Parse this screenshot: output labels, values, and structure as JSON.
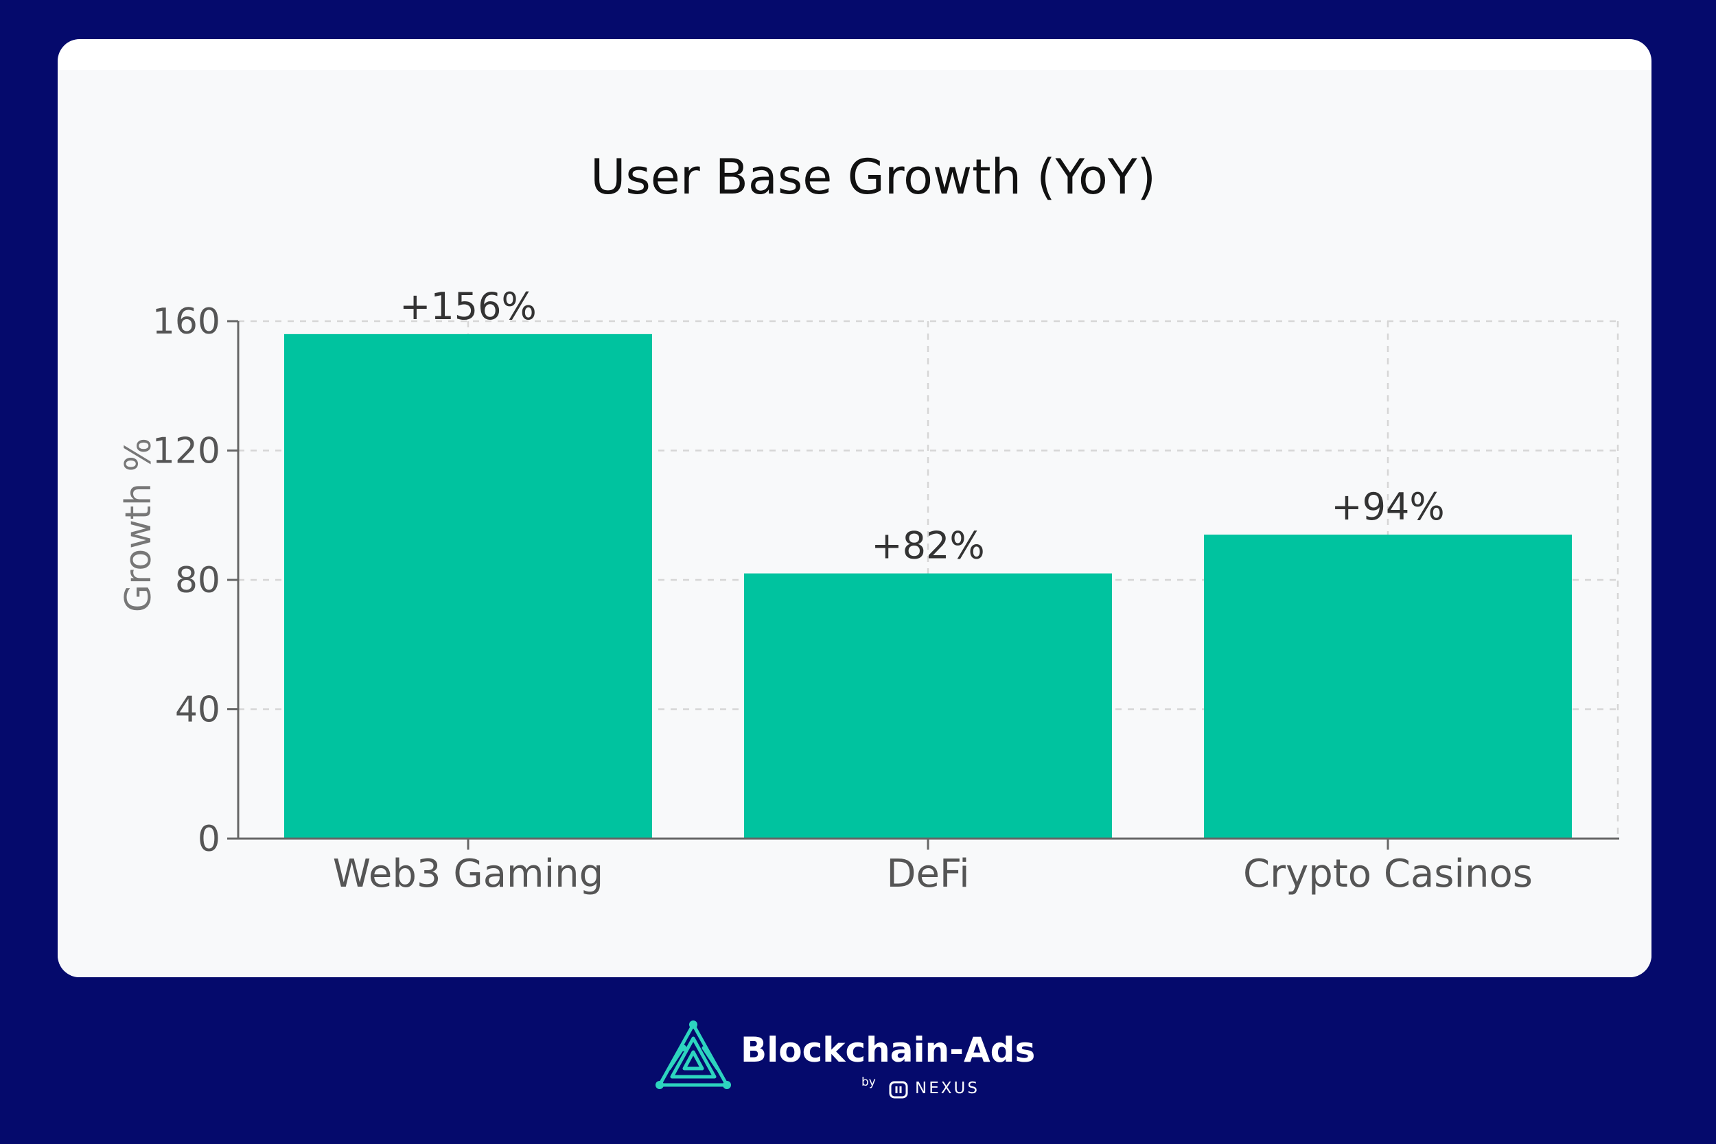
{
  "colors": {
    "background": "#050a6c",
    "card": "#ffffff",
    "plot_background": "#f8f9fa",
    "bar": "#00c39f",
    "logo_accent": "#2dd4bf"
  },
  "chart_data": {
    "type": "bar",
    "title": "User Base Growth (YoY)",
    "xlabel": "",
    "ylabel": "Growth %",
    "categories": [
      "Web3 Gaming",
      "DeFi",
      "Crypto Casinos"
    ],
    "values": [
      156,
      82,
      94
    ],
    "data_labels": [
      "+156%",
      "+82%",
      "+94%"
    ],
    "ylim": [
      0,
      160
    ],
    "yticks": [
      0,
      40,
      80,
      120,
      160
    ],
    "grid": true,
    "legend": "none"
  },
  "branding": {
    "wordmark": "Blockchain-Ads",
    "by": "by",
    "partner": "NEXUS"
  }
}
